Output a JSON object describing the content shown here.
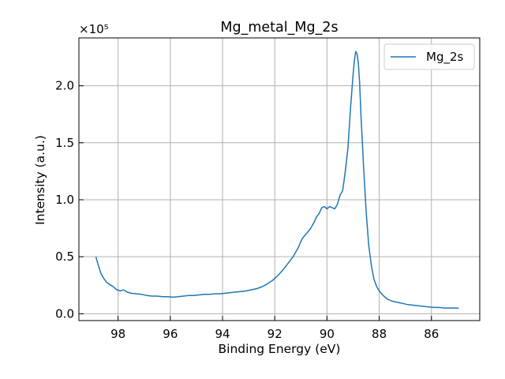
{
  "chart_data": {
    "type": "line",
    "title": "Mg_metal_Mg_2s",
    "xlabel": "Binding Energy (eV)",
    "ylabel": "Intensity (a.u.)",
    "y_scale_note": "×10⁵",
    "xlim": [
      99.5,
      84.15
    ],
    "ylim": [
      -0.06,
      2.42
    ],
    "x_inverted": true,
    "grid": true,
    "legend_position": "top-right",
    "xticks": [
      98,
      96,
      94,
      92,
      90,
      88,
      86
    ],
    "yticks": [
      0.0,
      0.5,
      1.0,
      1.5,
      2.0
    ],
    "xtick_labels": [
      "98",
      "96",
      "94",
      "92",
      "90",
      "88",
      "86"
    ],
    "ytick_labels": [
      "0.0",
      "0.5",
      "1.0",
      "1.5",
      "2.0"
    ],
    "line_color": "#1f77b4",
    "series": [
      {
        "name": "Mg_2s",
        "x": [
          98.85,
          98.75,
          98.65,
          98.55,
          98.45,
          98.35,
          98.2,
          98.05,
          97.9,
          97.8,
          97.65,
          97.5,
          97.3,
          97.1,
          96.9,
          96.7,
          96.5,
          96.3,
          96.1,
          95.9,
          95.7,
          95.5,
          95.3,
          95.1,
          94.9,
          94.7,
          94.5,
          94.3,
          94.1,
          93.9,
          93.7,
          93.5,
          93.3,
          93.1,
          92.9,
          92.7,
          92.5,
          92.3,
          92.1,
          91.9,
          91.7,
          91.5,
          91.3,
          91.1,
          90.95,
          90.8,
          90.65,
          90.5,
          90.4,
          90.3,
          90.2,
          90.1,
          90.0,
          89.9,
          89.8,
          89.7,
          89.6,
          89.5,
          89.4,
          89.3,
          89.2,
          89.1,
          89.0,
          88.95,
          88.9,
          88.85,
          88.8,
          88.75,
          88.7,
          88.6,
          88.5,
          88.4,
          88.3,
          88.2,
          88.1,
          88.0,
          87.85,
          87.7,
          87.5,
          87.3,
          87.1,
          86.9,
          86.7,
          86.5,
          86.3,
          86.1,
          85.9,
          85.7,
          85.5,
          85.3,
          85.1,
          84.95
        ],
        "y": [
          0.5,
          0.42,
          0.35,
          0.31,
          0.28,
          0.26,
          0.24,
          0.21,
          0.2,
          0.21,
          0.19,
          0.18,
          0.175,
          0.17,
          0.16,
          0.155,
          0.155,
          0.15,
          0.15,
          0.145,
          0.15,
          0.155,
          0.16,
          0.16,
          0.165,
          0.17,
          0.17,
          0.175,
          0.175,
          0.18,
          0.185,
          0.19,
          0.195,
          0.2,
          0.21,
          0.22,
          0.235,
          0.26,
          0.29,
          0.33,
          0.38,
          0.44,
          0.5,
          0.58,
          0.66,
          0.7,
          0.74,
          0.8,
          0.85,
          0.88,
          0.93,
          0.94,
          0.92,
          0.94,
          0.93,
          0.92,
          0.96,
          1.04,
          1.08,
          1.25,
          1.45,
          1.8,
          2.1,
          2.22,
          2.3,
          2.28,
          2.2,
          2.02,
          1.75,
          1.3,
          0.9,
          0.6,
          0.42,
          0.3,
          0.24,
          0.2,
          0.16,
          0.13,
          0.11,
          0.1,
          0.09,
          0.08,
          0.075,
          0.07,
          0.065,
          0.06,
          0.055,
          0.055,
          0.05,
          0.05,
          0.05,
          0.048
        ]
      }
    ]
  }
}
